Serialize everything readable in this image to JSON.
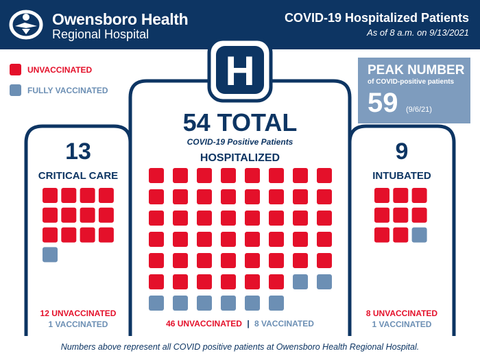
{
  "header": {
    "brand_line1": "Owensboro Health",
    "brand_line2": "Regional Hospital",
    "title": "COVID-19 Hospitalized Patients",
    "subtitle": "As of 8 a.m. on 9/13/2021"
  },
  "legend": {
    "unvaccinated": "UNVACCINATED",
    "vaccinated": "FULLY VACCINATED"
  },
  "peak": {
    "title": "PEAK NUMBER",
    "subtitle": "of COVID-positive patients",
    "value": "59",
    "date": "(9/6/21)"
  },
  "hospital_icon_letter": "H",
  "total": {
    "value": "54 TOTAL",
    "caption": "COVID-19 Positive Patients"
  },
  "critical": {
    "count": "13",
    "label": "CRITICAL CARE",
    "unvax_text": "12 UNVACCINATED",
    "vax_text": "1 VACCINATED"
  },
  "hospitalized": {
    "label": "HOSPITALIZED",
    "unvax_text": "46 UNVACCINATED",
    "separator": "|",
    "vax_text": "8 VACCINATED"
  },
  "intubated": {
    "count": "9",
    "label": "INTUBATED",
    "unvax_text": "8 UNVACCINATED",
    "vax_text": "1 VACCINATED"
  },
  "footer": "Numbers above represent all COVID positive patients at Owensboro Health Regional Hospital.",
  "colors": {
    "navy": "#0d3563",
    "unvaccinated": "#e4102a",
    "vaccinated": "#6c8fb4",
    "peak_box": "#7e9cbe"
  },
  "chart_data": {
    "type": "waffle",
    "categories": [
      "CRITICAL CARE",
      "HOSPITALIZED",
      "INTUBATED"
    ],
    "series": [
      {
        "name": "UNVACCINATED",
        "values": [
          12,
          46,
          8
        ]
      },
      {
        "name": "FULLY VACCINATED",
        "values": [
          1,
          8,
          1
        ]
      }
    ],
    "totals": [
      13,
      54,
      9
    ],
    "total_patients": 54,
    "peak": 59,
    "peak_date": "9/6/21"
  }
}
